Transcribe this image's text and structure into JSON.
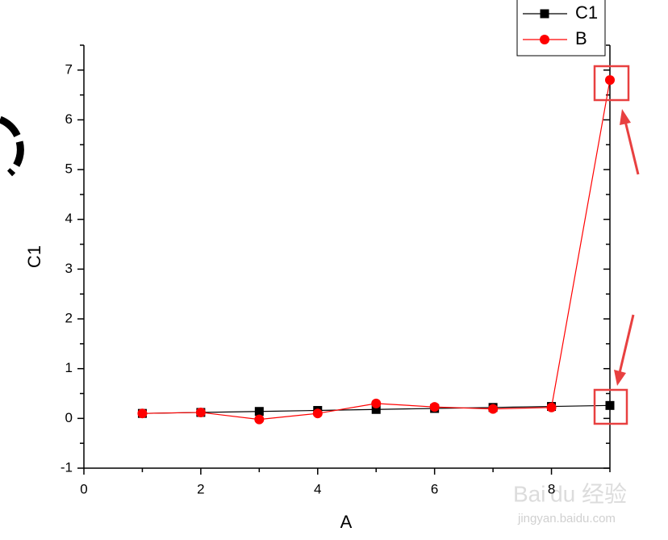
{
  "chart_data": {
    "type": "line",
    "x_label": "A",
    "y_label": "C1",
    "x": [
      1,
      2,
      3,
      4,
      5,
      6,
      7,
      8,
      9
    ],
    "series": [
      {
        "name": "C1",
        "color": "#000000",
        "marker": "square",
        "values": [
          0.1,
          0.12,
          0.14,
          0.16,
          0.18,
          0.2,
          0.22,
          0.24,
          0.26
        ]
      },
      {
        "name": "B",
        "color": "#ff0000",
        "marker": "circle",
        "values": [
          0.1,
          0.12,
          -0.02,
          0.1,
          0.3,
          0.23,
          0.19,
          0.22,
          6.8
        ]
      }
    ],
    "xlim": [
      0,
      9
    ],
    "xticks": [
      0,
      2,
      4,
      6,
      8
    ],
    "xminorticks": [
      1,
      3,
      5,
      7,
      9
    ],
    "ylim": [
      -1,
      7.5
    ],
    "yticks": [
      -1,
      0,
      1,
      2,
      3,
      4,
      5,
      6,
      7
    ],
    "yminorticks": [
      -0.5,
      0.5,
      1.5,
      2.5,
      3.5,
      4.5,
      5.5,
      6.5,
      7.5
    ],
    "grid": false,
    "legend": "top-right"
  },
  "watermark": {
    "brand": "Bai du 经验",
    "url": "jingyan.baidu.com"
  }
}
